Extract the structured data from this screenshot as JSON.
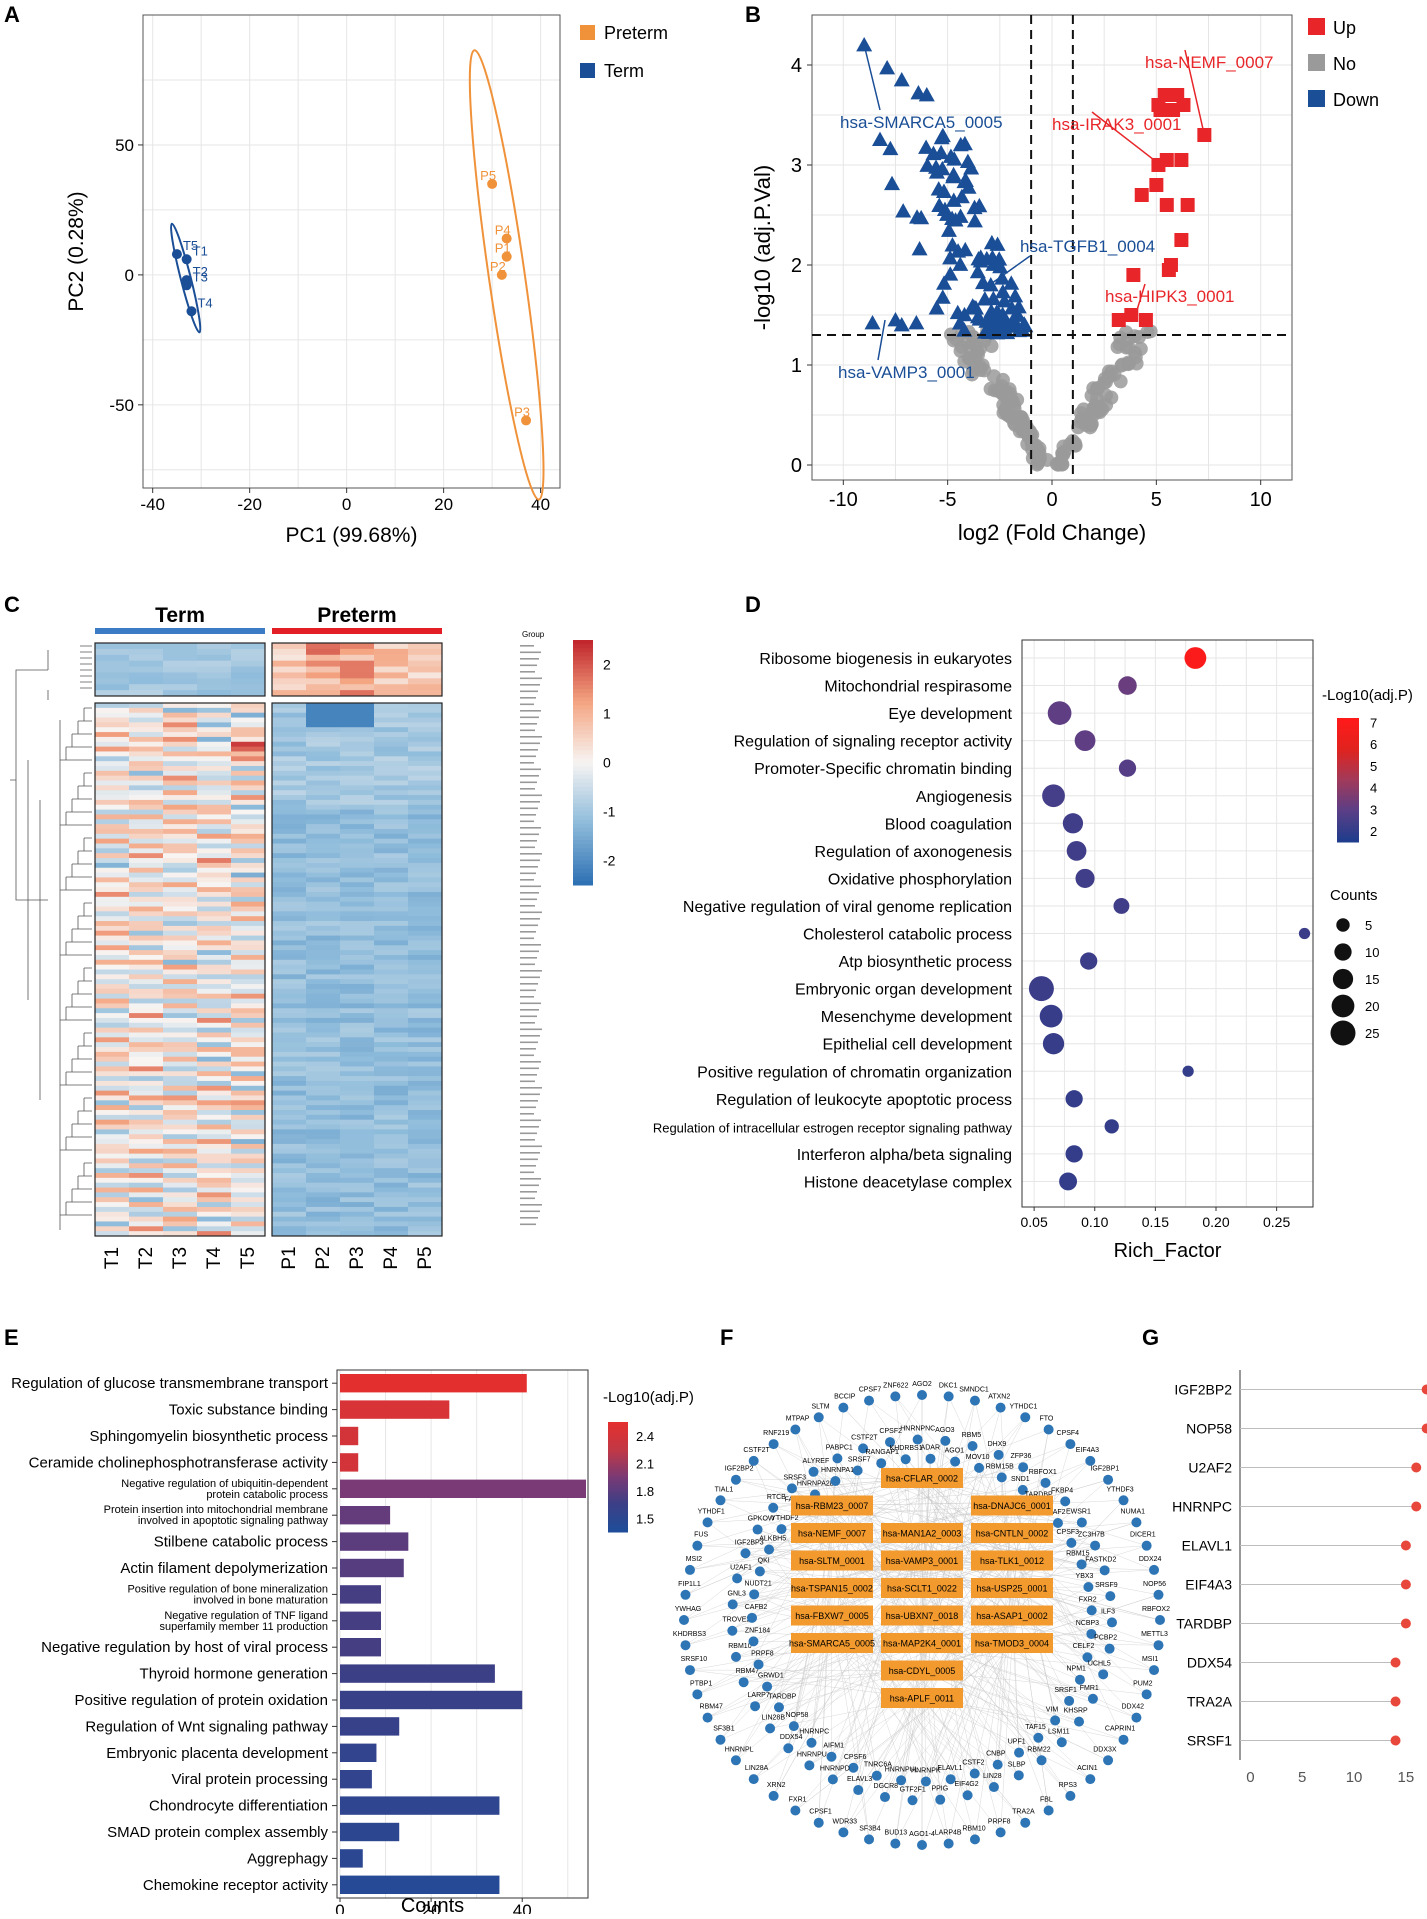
{
  "panel_labels": [
    "A",
    "B",
    "C",
    "D",
    "E",
    "F",
    "G"
  ],
  "colors": {
    "preterm": "#F0923A",
    "term": "#1A4E96",
    "up": "#E8262A",
    "no": "#9A9A9A",
    "down": "#1A4E96",
    "grid": "#E6E6E6"
  },
  "chart_data": [
    {
      "id": "A",
      "type": "scatter",
      "xlabel": "PC1 (99.68%)",
      "ylabel": "PC2 (0.28%)",
      "xlim": [
        -42,
        44
      ],
      "ylim": [
        -82,
        100
      ],
      "xticks": [
        -40,
        -20,
        0,
        20,
        40
      ],
      "yticks": [
        50,
        0,
        -50
      ],
      "legend": [
        "Preterm",
        "Term"
      ],
      "series": [
        {
          "name": "Preterm",
          "points": [
            {
              "label": "P5",
              "x": 30,
              "y": 35
            },
            {
              "label": "P4",
              "x": 33,
              "y": 14
            },
            {
              "label": "P1",
              "x": 33,
              "y": 7
            },
            {
              "label": "P2",
              "x": 32,
              "y": 0
            },
            {
              "label": "P3",
              "x": 37,
              "y": -56
            }
          ]
        },
        {
          "name": "Term",
          "points": [
            {
              "label": "T5",
              "x": -35,
              "y": 8
            },
            {
              "label": "T1",
              "x": -33,
              "y": 6
            },
            {
              "label": "T2",
              "x": -33,
              "y": -2
            },
            {
              "label": "T3",
              "x": -33,
              "y": -4
            },
            {
              "label": "T4",
              "x": -32,
              "y": -14
            }
          ]
        }
      ]
    },
    {
      "id": "B",
      "type": "scatter",
      "xlabel": "log2 (Fold Change)",
      "ylabel": "-log10 (adj.P.Val)",
      "xlim": [
        -11.5,
        11.5
      ],
      "ylim": [
        -0.15,
        4.5
      ],
      "xticks": [
        -10,
        -5,
        0,
        5,
        10
      ],
      "yticks": [
        0,
        1,
        2,
        3,
        4
      ],
      "thresholds": {
        "fc": 1,
        "p": 1.3
      },
      "legend": [
        "Up",
        "No",
        "Down"
      ],
      "labels": [
        {
          "text": "hsa-SMARCA5_0005",
          "group": "down",
          "x": -9,
          "y": 4.2
        },
        {
          "text": "hsa-TGFB1_0004",
          "group": "down",
          "x": -3,
          "y": 1.8
        },
        {
          "text": "hsa-VAMP3_0001",
          "group": "down",
          "x": -8,
          "y": 1.45
        },
        {
          "text": "hsa-NEMF_0007",
          "group": "up",
          "x": 7.3,
          "y": 3.3
        },
        {
          "text": "hsa-IRAK3_0001",
          "group": "up",
          "x": 5.2,
          "y": 3.0
        },
        {
          "text": "hsa-HIPK3_0001",
          "group": "up",
          "x": 4,
          "y": 1.5
        }
      ]
    },
    {
      "id": "C",
      "type": "heatmap",
      "groups": [
        "Term",
        "Preterm"
      ],
      "group_label": "Group",
      "samples": [
        "T1",
        "T2",
        "T3",
        "T4",
        "T5",
        "P1",
        "P2",
        "P3",
        "P4",
        "P5"
      ],
      "colorbar": {
        "ticks": [
          2,
          1,
          0,
          -1,
          -2
        ],
        "range": [
          -2.5,
          2.5
        ]
      }
    },
    {
      "id": "D",
      "type": "scatter",
      "xlabel": "Rich_Factor",
      "xlim": [
        0.04,
        0.28
      ],
      "xticks": [
        0.05,
        0.1,
        0.15,
        0.2,
        0.25
      ],
      "color_title": "-Log10(adj.P)",
      "color_ticks": [
        7,
        6,
        5,
        4,
        3,
        2
      ],
      "color_range": [
        1.5,
        7.2
      ],
      "size_title": "Counts",
      "size_ticks": [
        5,
        10,
        15,
        20,
        25
      ],
      "terms": [
        {
          "name": "Ribosome biogenesis in eukaryotes",
          "x": 0.183,
          "count": 18,
          "p": 7.0
        },
        {
          "name": "Mitochondrial respirasome",
          "x": 0.127,
          "count": 12,
          "p": 3.2
        },
        {
          "name": "Eye development",
          "x": 0.071,
          "count": 22,
          "p": 3.0
        },
        {
          "name": "Regulation of signaling receptor activity",
          "x": 0.092,
          "count": 16,
          "p": 3.0
        },
        {
          "name": "Promoter-Specific chromatin binding",
          "x": 0.127,
          "count": 10,
          "p": 2.8
        },
        {
          "name": "Angiogenesis",
          "x": 0.066,
          "count": 20,
          "p": 2.4
        },
        {
          "name": "Blood coagulation",
          "x": 0.082,
          "count": 15,
          "p": 2.3
        },
        {
          "name": "Regulation of axonogenesis",
          "x": 0.085,
          "count": 14,
          "p": 2.3
        },
        {
          "name": "Oxidative phosphorylation",
          "x": 0.092,
          "count": 13,
          "p": 2.3
        },
        {
          "name": "Negative regulation of viral genome replication",
          "x": 0.122,
          "count": 8,
          "p": 2.3
        },
        {
          "name": "Cholesterol catabolic process",
          "x": 0.273,
          "count": 3,
          "p": 2.2
        },
        {
          "name": "Atp biosynthetic process",
          "x": 0.095,
          "count": 10,
          "p": 2.2
        },
        {
          "name": "Embryonic organ development",
          "x": 0.056,
          "count": 25,
          "p": 2.2
        },
        {
          "name": "Mesenchyme development",
          "x": 0.064,
          "count": 20,
          "p": 2.1
        },
        {
          "name": "Epithelial cell development",
          "x": 0.066,
          "count": 17,
          "p": 2.1
        },
        {
          "name": "Positive regulation of chromatin organization",
          "x": 0.177,
          "count": 3,
          "p": 2.0
        },
        {
          "name": "Regulation of leukocyte apoptotic process",
          "x": 0.083,
          "count": 10,
          "p": 2.0
        },
        {
          "name": "Regulation of intracellular estrogen receptor signaling pathway",
          "x": 0.114,
          "count": 6,
          "p": 2.0
        },
        {
          "name": "Interferon alpha/beta signaling",
          "x": 0.083,
          "count": 10,
          "p": 2.0
        },
        {
          "name": "Histone deacetylase complex",
          "x": 0.078,
          "count": 11,
          "p": 2.0
        }
      ]
    },
    {
      "id": "E",
      "type": "bar",
      "xlabel": "Counts",
      "xlim": [
        0,
        54
      ],
      "xticks": [
        0,
        20,
        40
      ],
      "color_title": "-Log10(adj.P)",
      "color_ticks": [
        2.4,
        2.1,
        1.8,
        1.5
      ],
      "color_range": [
        1.35,
        2.55
      ],
      "bars": [
        {
          "label": [
            "Regulation of glucose transmembrane transport"
          ],
          "value": 41,
          "p": 2.55
        },
        {
          "label": [
            "Toxic substance binding"
          ],
          "value": 24,
          "p": 2.45
        },
        {
          "label": [
            "Sphingomyelin biosynthetic process"
          ],
          "value": 4,
          "p": 2.4
        },
        {
          "label": [
            "Ceramide cholinephosphotransferase activity"
          ],
          "value": 4,
          "p": 2.4
        },
        {
          "label": [
            "Negative regulation of ubiquitin-dependent",
            "protein catabolic process"
          ],
          "value": 54,
          "p": 1.95
        },
        {
          "label": [
            "Protein insertion into mitochondrial membrane",
            "involved in apoptotic signaling pathway"
          ],
          "value": 11,
          "p": 1.85
        },
        {
          "label": [
            "Stilbene catabolic process"
          ],
          "value": 15,
          "p": 1.8
        },
        {
          "label": [
            "Actin filament depolymerization"
          ],
          "value": 14,
          "p": 1.78
        },
        {
          "label": [
            "Positive regulation of bone mineralization",
            "involved in bone maturation"
          ],
          "value": 9,
          "p": 1.7
        },
        {
          "label": [
            "Negative regulation of TNF ligand",
            "superfamily member 11 production"
          ],
          "value": 9,
          "p": 1.7
        },
        {
          "label": [
            "Negative regulation by host of viral process"
          ],
          "value": 9,
          "p": 1.7
        },
        {
          "label": [
            "Thyroid hormone generation"
          ],
          "value": 34,
          "p": 1.65
        },
        {
          "label": [
            "Positive regulation of protein oxidation"
          ],
          "value": 40,
          "p": 1.62
        },
        {
          "label": [
            "Regulation of Wnt signaling pathway"
          ],
          "value": 13,
          "p": 1.6
        },
        {
          "label": [
            "Embryonic placenta development"
          ],
          "value": 8,
          "p": 1.55
        },
        {
          "label": [
            "Viral protein processing"
          ],
          "value": 7,
          "p": 1.55
        },
        {
          "label": [
            "Chondrocyte differentiation"
          ],
          "value": 35,
          "p": 1.52
        },
        {
          "label": [
            "SMAD protein complex assembly"
          ],
          "value": 13,
          "p": 1.5
        },
        {
          "label": [
            "Aggrephagy"
          ],
          "value": 5,
          "p": 1.48
        },
        {
          "label": [
            "Chemokine receptor activity"
          ],
          "value": 35,
          "p": 1.42
        }
      ]
    },
    {
      "id": "G",
      "type": "scatter",
      "xlim": [
        -1,
        18
      ],
      "xticks": [
        0,
        5,
        10,
        15
      ],
      "genes": [
        {
          "name": "IGF2BP2",
          "value": 17
        },
        {
          "name": "NOP58",
          "value": 17
        },
        {
          "name": "U2AF2",
          "value": 16
        },
        {
          "name": "HNRNPC",
          "value": 16
        },
        {
          "name": "ELAVL1",
          "value": 15
        },
        {
          "name": "EIF4A3",
          "value": 15
        },
        {
          "name": "TARDBP",
          "value": 15
        },
        {
          "name": "DDX54",
          "value": 14
        },
        {
          "name": "TRA2A",
          "value": 14
        },
        {
          "name": "SRSF1",
          "value": 14
        }
      ]
    }
  ],
  "network": {
    "circrnas": [
      [
        "hsa-CFLAR_0002"
      ],
      [
        "hsa-RBM23_0007",
        "hsa-DNAJC6_0001"
      ],
      [
        "hsa-NEMF_0007",
        "hsa-MAN1A2_0003",
        "hsa-CNTLN_0002"
      ],
      [
        "hsa-SLTM_0001",
        "hsa-VAMP3_0001",
        "hsa-TLK1_0012"
      ],
      [
        "hsa-TSPAN15_0002",
        "hsa-SCLT1_0022",
        "hsa-USP25_0001"
      ],
      [
        "hsa-FBXW7_0005",
        "hsa-UBXN7_0018",
        "hsa-ASAP1_0002"
      ],
      [
        "hsa-SMARCA5_0005",
        "hsa-MAP2K4_0001",
        "hsa-TMOD3_0004"
      ],
      [
        "hsa-CDYL_0005"
      ],
      [
        "hsa-APLF_0011"
      ]
    ],
    "outer_ring": [
      "AGO2",
      "DKC1",
      "SMNDC1",
      "ATXN2",
      "YTHDC1",
      "FTO",
      "CPSF4",
      "EIF4A3",
      "IGF2BP1",
      "YTHDF3",
      "NUMA1",
      "DICER1",
      "DDX24",
      "NOP56",
      "RBFOX2",
      "METTL3",
      "MSI1",
      "PUM2",
      "DDX42",
      "CAPRIN1",
      "DDX3X",
      "ACIN1",
      "RPS3",
      "FBL",
      "TRA2A",
      "PRPF8",
      "RBM10",
      "LARP4B",
      "AGO1-4",
      "BUD13",
      "SF3B4",
      "WDR33",
      "CPSF1",
      "FXR1",
      "XRN2",
      "LIN28A",
      "HNRNPL",
      "SF3B1",
      "RBM47",
      "PTBP1",
      "SRSF10",
      "KHDRBS3",
      "YWHAG",
      "FIP1L1",
      "MSI2",
      "FUS",
      "YTHDF1",
      "TIAL1",
      "IGF2BP2",
      "CSTF2T",
      "RNF219",
      "MTPAP",
      "SLTM",
      "BCCIP",
      "CPSF7",
      "ZNF622"
    ],
    "mid_ring": [
      "ADAR",
      "AGO3",
      "AGO1",
      "RBM5",
      "MOV10",
      "DHX9",
      "RBM15B",
      "ZFP36",
      "SND1",
      "RBFOX1",
      "TARDBP",
      "FKBP4",
      "U2AF2",
      "EWSR1",
      "CPSF3",
      "ZC3H7B",
      "RBM15",
      "FASTKD2",
      "YBX3",
      "SRSF9",
      "FXR2",
      "ILF3",
      "NCBP3",
      "PCBP2",
      "CELF2",
      "UCHL5",
      "NPM1",
      "FMR1",
      "SRSF1",
      "KHSRP",
      "VIM",
      "LSM11",
      "TAF15",
      "RBM22",
      "UPF1",
      "SLBP",
      "CNBP",
      "LIN28",
      "CSTF2",
      "EIF4G2",
      "ELAVL1",
      "PPIG",
      "HNRNPK",
      "GTF2F1",
      "HNRNPUL",
      "DGCR8",
      "TNRC6A",
      "ELAVL3",
      "CPSF6",
      "HNRNPD",
      "AIFM1",
      "HNRNPU",
      "HNRNPC",
      "DDX54",
      "NOP58",
      "LIN28B",
      "TARDBP",
      "LARP7",
      "GRWD1",
      "RBM47",
      "PRPF8",
      "RBM10",
      "ZNF184",
      "TROVE2",
      "CAFB2",
      "GNL3",
      "NUDT21",
      "U2AF1",
      "QKI",
      "IGF2BP3",
      "ALKBH5",
      "GPKOW",
      "YTHDF2",
      "RTCB",
      "FAM120A",
      "SRSF3",
      "HNRNPA2B1",
      "ALYREF",
      "HNRNPA1",
      "PABPC1",
      "SRSF7",
      "CSTF2T",
      "RANGAP1",
      "CPSF2",
      "KHDRBS1",
      "HNRNPNC"
    ]
  }
}
